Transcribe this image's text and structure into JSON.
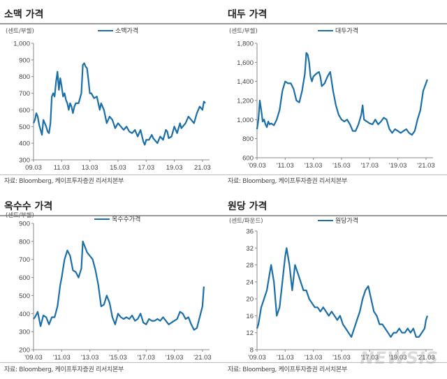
{
  "source_text": "자료: Bloomberg, 케이프투자증권 리서치본부",
  "line_color": "#1b6fa8",
  "watermark": "NEWSIS",
  "chart_data": [
    {
      "type": "line",
      "title": "소맥 가격",
      "ylabel": "(센트/부쉘)",
      "legend": "소맥가격",
      "ylim": [
        300,
        1000
      ],
      "yticks": [
        300,
        400,
        500,
        600,
        700,
        800,
        900,
        1000
      ],
      "ytick_labels": [
        "300",
        "400",
        "500",
        "600",
        "700",
        "800",
        "900",
        "1,000"
      ],
      "xlim": [
        2009.0,
        2021.5
      ],
      "xticks": [
        2009.0,
        2011.0,
        2013.0,
        2015.0,
        2017.0,
        2019.0,
        2021.0
      ],
      "xtick_labels": [
        "09.03",
        "11.03",
        "13.03",
        "15.03",
        "17.03",
        "19.03",
        "21.03"
      ],
      "x": [
        2009.0,
        2009.1,
        2009.2,
        2009.3,
        2009.4,
        2009.5,
        2009.6,
        2009.7,
        2009.8,
        2009.9,
        2010.0,
        2010.1,
        2010.2,
        2010.3,
        2010.4,
        2010.5,
        2010.6,
        2010.7,
        2010.8,
        2010.9,
        2011.0,
        2011.1,
        2011.2,
        2011.3,
        2011.4,
        2011.5,
        2011.6,
        2011.7,
        2011.8,
        2011.9,
        2012.0,
        2012.2,
        2012.4,
        2012.5,
        2012.6,
        2012.7,
        2012.8,
        2012.9,
        2013.0,
        2013.1,
        2013.3,
        2013.5,
        2013.7,
        2013.8,
        2014.0,
        2014.2,
        2014.4,
        2014.6,
        2014.8,
        2015.0,
        2015.2,
        2015.4,
        2015.6,
        2015.8,
        2016.0,
        2016.2,
        2016.4,
        2016.6,
        2016.8,
        2016.9,
        2017.0,
        2017.2,
        2017.4,
        2017.5,
        2017.6,
        2017.8,
        2018.0,
        2018.2,
        2018.4,
        2018.5,
        2018.6,
        2018.8,
        2019.0,
        2019.2,
        2019.4,
        2019.5,
        2019.6,
        2019.8,
        2020.0,
        2020.2,
        2020.4,
        2020.6,
        2020.8,
        2021.0,
        2021.1,
        2021.2
      ],
      "values": [
        520,
        540,
        580,
        560,
        510,
        480,
        450,
        540,
        520,
        500,
        470,
        460,
        520,
        680,
        700,
        680,
        770,
        830,
        720,
        790,
        740,
        680,
        700,
        660,
        640,
        600,
        640,
        620,
        580,
        620,
        640,
        640,
        700,
        870,
        880,
        860,
        850,
        780,
        700,
        700,
        670,
        680,
        600,
        640,
        600,
        520,
        560,
        540,
        490,
        520,
        500,
        480,
        500,
        470,
        460,
        480,
        440,
        480,
        410,
        390,
        420,
        420,
        450,
        430,
        420,
        400,
        440,
        420,
        480,
        470,
        430,
        440,
        500,
        460,
        520,
        490,
        500,
        520,
        560,
        540,
        520,
        580,
        620,
        600,
        650,
        640
      ]
    },
    {
      "type": "line",
      "title": "대두 가격",
      "ylabel": "(센트/부쉘)",
      "legend": "대두가격",
      "ylim": [
        600,
        1800
      ],
      "yticks": [
        600,
        800,
        1000,
        1200,
        1400,
        1600,
        1800
      ],
      "ytick_labels": [
        "600",
        "800",
        "1,000",
        "1,200",
        "1,400",
        "1,600",
        "1,800"
      ],
      "xlim": [
        2009.0,
        2021.5
      ],
      "xticks": [
        2009.0,
        2011.0,
        2013.0,
        2015.0,
        2017.0,
        2019.0,
        2021.0
      ],
      "xtick_labels": [
        "'09.03",
        "'11.03",
        "'13.03",
        "'15.03",
        "'17.03",
        "'19.03",
        "'21.03"
      ],
      "x": [
        2009.0,
        2009.1,
        2009.2,
        2009.3,
        2009.4,
        2009.5,
        2009.6,
        2009.7,
        2009.8,
        2009.9,
        2010.0,
        2010.2,
        2010.4,
        2010.6,
        2010.8,
        2011.0,
        2011.2,
        2011.4,
        2011.6,
        2011.8,
        2012.0,
        2012.2,
        2012.4,
        2012.5,
        2012.6,
        2012.7,
        2012.8,
        2012.9,
        2013.0,
        2013.2,
        2013.4,
        2013.5,
        2013.6,
        2013.8,
        2014.0,
        2014.2,
        2014.4,
        2014.6,
        2014.8,
        2015.0,
        2015.2,
        2015.4,
        2015.6,
        2015.8,
        2016.0,
        2016.2,
        2016.4,
        2016.5,
        2016.6,
        2016.8,
        2017.0,
        2017.2,
        2017.4,
        2017.6,
        2017.8,
        2018.0,
        2018.2,
        2018.4,
        2018.6,
        2018.8,
        2019.0,
        2019.2,
        2019.4,
        2019.6,
        2019.8,
        2020.0,
        2020.2,
        2020.4,
        2020.6,
        2020.8,
        2021.0,
        2021.1
      ],
      "values": [
        900,
        1000,
        1200,
        1100,
        980,
        1000,
        950,
        920,
        980,
        950,
        960,
        940,
        1000,
        1100,
        1300,
        1400,
        1380,
        1380,
        1320,
        1200,
        1180,
        1300,
        1480,
        1700,
        1680,
        1600,
        1450,
        1400,
        1450,
        1480,
        1500,
        1450,
        1350,
        1380,
        1450,
        1500,
        1300,
        1150,
        1050,
        1000,
        980,
        1000,
        950,
        880,
        880,
        950,
        1050,
        1150,
        1000,
        980,
        960,
        950,
        1000,
        950,
        980,
        1020,
        1000,
        900,
        860,
        900,
        880,
        860,
        880,
        900,
        860,
        840,
        880,
        1000,
        1100,
        1300,
        1380,
        1420
      ]
    },
    {
      "type": "line",
      "title": "옥수수 가격",
      "ylabel": "(센트/부쉘)",
      "legend": "옥수수가격",
      "ylim": [
        200,
        900
      ],
      "yticks": [
        200,
        300,
        400,
        500,
        600,
        700,
        800,
        900
      ],
      "ytick_labels": [
        "200",
        "300",
        "400",
        "500",
        "600",
        "700",
        "800",
        "900"
      ],
      "xlim": [
        2009.0,
        2021.5
      ],
      "xticks": [
        2009.0,
        2011.0,
        2013.0,
        2015.0,
        2017.0,
        2019.0,
        2021.0
      ],
      "xtick_labels": [
        "'09.03",
        "'11.03",
        "'13.03",
        "'15.03",
        "'17.03",
        "'19.03",
        "'21.03"
      ],
      "x": [
        2009.0,
        2009.1,
        2009.3,
        2009.5,
        2009.7,
        2009.9,
        2010.1,
        2010.3,
        2010.5,
        2010.7,
        2010.9,
        2011.0,
        2011.2,
        2011.4,
        2011.6,
        2011.8,
        2012.0,
        2012.2,
        2012.4,
        2012.5,
        2012.6,
        2012.8,
        2013.0,
        2013.2,
        2013.4,
        2013.6,
        2013.8,
        2014.0,
        2014.2,
        2014.4,
        2014.6,
        2014.8,
        2015.0,
        2015.2,
        2015.4,
        2015.6,
        2015.8,
        2016.0,
        2016.2,
        2016.4,
        2016.6,
        2016.8,
        2017.0,
        2017.2,
        2017.4,
        2017.6,
        2017.8,
        2018.0,
        2018.2,
        2018.4,
        2018.6,
        2018.8,
        2019.0,
        2019.2,
        2019.4,
        2019.6,
        2019.8,
        2020.0,
        2020.2,
        2020.4,
        2020.6,
        2020.8,
        2021.0,
        2021.1
      ],
      "values": [
        370,
        380,
        410,
        330,
        390,
        380,
        340,
        380,
        380,
        440,
        560,
        600,
        700,
        750,
        720,
        640,
        630,
        600,
        650,
        800,
        780,
        740,
        720,
        700,
        640,
        560,
        440,
        450,
        500,
        460,
        380,
        340,
        400,
        380,
        370,
        380,
        370,
        390,
        360,
        370,
        400,
        350,
        340,
        370,
        360,
        360,
        370,
        360,
        380,
        360,
        340,
        350,
        360,
        370,
        410,
        400,
        370,
        380,
        340,
        310,
        320,
        380,
        440,
        550
      ]
    },
    {
      "type": "line",
      "title": "원당 가격",
      "ylabel": "(센트/파운드)",
      "legend": "원당가격",
      "ylim": [
        8,
        36
      ],
      "yticks": [
        8,
        12,
        16,
        20,
        24,
        28,
        32,
        36
      ],
      "ytick_labels": [
        "8",
        "12",
        "16",
        "20",
        "24",
        "28",
        "32",
        "36"
      ],
      "xlim": [
        2009.0,
        2021.5
      ],
      "xticks": [
        2009.0,
        2011.0,
        2013.0,
        2015.0,
        2017.0,
        2019.0,
        2021.0
      ],
      "xtick_labels": [
        "'09.03",
        "'11.03",
        "'13.03",
        "'15.03",
        "'17.03",
        "'19.03",
        "'21.03"
      ],
      "x": [
        2009.0,
        2009.1,
        2009.3,
        2009.5,
        2009.7,
        2009.9,
        2010.0,
        2010.2,
        2010.4,
        2010.6,
        2010.8,
        2011.0,
        2011.1,
        2011.3,
        2011.5,
        2011.7,
        2011.9,
        2012.1,
        2012.3,
        2012.5,
        2012.7,
        2012.9,
        2013.1,
        2013.3,
        2013.5,
        2013.7,
        2013.9,
        2014.1,
        2014.3,
        2014.5,
        2014.7,
        2014.9,
        2015.1,
        2015.3,
        2015.5,
        2015.7,
        2015.9,
        2016.1,
        2016.3,
        2016.5,
        2016.7,
        2016.9,
        2017.1,
        2017.3,
        2017.5,
        2017.7,
        2017.9,
        2018.1,
        2018.3,
        2018.5,
        2018.7,
        2018.9,
        2019.1,
        2019.3,
        2019.5,
        2019.7,
        2019.9,
        2020.1,
        2020.3,
        2020.5,
        2020.7,
        2020.9,
        2021.0,
        2021.1
      ],
      "values": [
        13,
        14,
        18,
        20,
        22,
        26,
        28,
        24,
        16,
        18,
        24,
        30,
        32,
        28,
        22,
        28,
        26,
        24,
        22,
        22,
        20,
        19,
        18,
        18,
        17,
        18,
        17,
        16,
        17,
        16,
        15,
        16,
        14,
        13,
        12,
        11,
        13,
        15,
        17,
        20,
        22,
        23,
        20,
        17,
        16,
        14,
        14,
        13,
        12,
        11,
        12,
        12,
        13,
        12,
        12,
        13,
        12,
        13,
        11,
        11,
        12,
        13,
        15,
        16
      ]
    }
  ]
}
